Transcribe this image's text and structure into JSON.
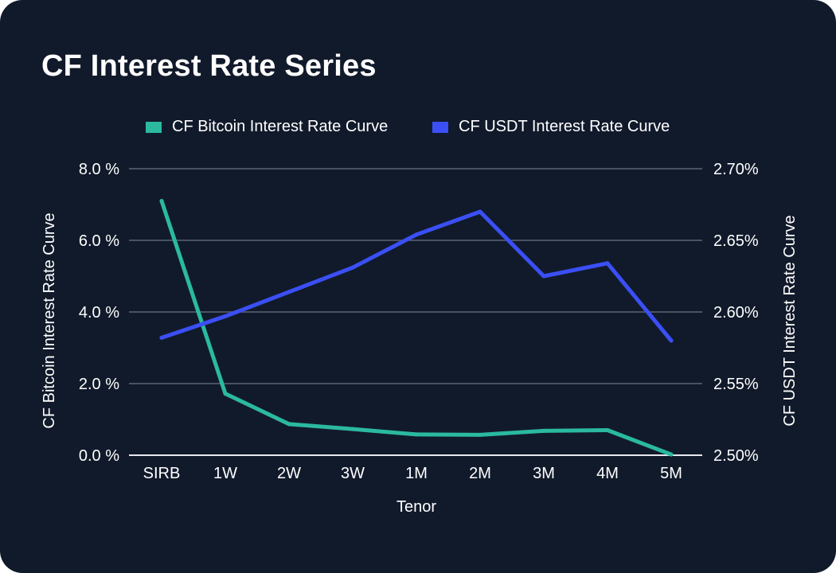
{
  "title": "CF Interest Rate Series",
  "colors": {
    "background": "#111a2b",
    "btc": "#2bb9a0",
    "usdt": "#3b4ff5",
    "grid": "#4a5163",
    "baseline": "#e6e8ee",
    "text": "#ffffff"
  },
  "legend": [
    {
      "label": "CF Bitcoin Interest Rate Curve",
      "color": "#2bb9a0"
    },
    {
      "label": "CF USDT Interest Rate Curve",
      "color": "#3b4ff5"
    }
  ],
  "chart_data": {
    "type": "line",
    "title": "CF Interest Rate Series",
    "xlabel": "Tenor",
    "ylabel_left": "CF Bitcoin Interest Rate Curve",
    "ylabel_right": "CF USDT Interest Rate Curve",
    "categories": [
      "SIRB",
      "1W",
      "2W",
      "3W",
      "1M",
      "2M",
      "3M",
      "4M",
      "5M"
    ],
    "ylim_left": [
      0,
      8
    ],
    "ylim_right": [
      2.5,
      2.7
    ],
    "yticks_left": [
      "0.0 %",
      "2.0 %",
      "4.0 %",
      "6.0 %",
      "8.0 %"
    ],
    "yticks_right": [
      "2.50%",
      "2.55%",
      "2.60%",
      "2.65%",
      "2.70%"
    ],
    "grid": true,
    "legend_position": "top",
    "series": [
      {
        "name": "CF Bitcoin Interest Rate Curve",
        "axis": "left",
        "color": "#2bb9a0",
        "values": [
          7.1,
          1.72,
          0.87,
          0.73,
          0.58,
          0.57,
          0.68,
          0.7,
          0.02
        ]
      },
      {
        "name": "CF USDT Interest Rate Curve",
        "axis": "right",
        "color": "#3b4ff5",
        "values": [
          2.582,
          2.597,
          2.614,
          2.631,
          2.654,
          2.67,
          2.625,
          2.634,
          2.58
        ]
      }
    ]
  }
}
